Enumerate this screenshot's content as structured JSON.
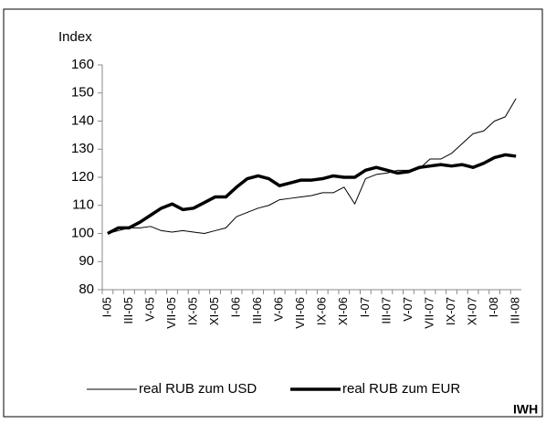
{
  "chart_data": {
    "type": "line",
    "y_label": "Index",
    "annotation": "IWH",
    "categories": [
      "I-05",
      null,
      "III-05",
      null,
      "V-05",
      null,
      "VII-05",
      null,
      "IX-05",
      null,
      "XI-05",
      null,
      "I-06",
      null,
      "III-06",
      null,
      "V-06",
      null,
      "VII-06",
      null,
      "IX-06",
      null,
      "XI-06",
      null,
      "I-07",
      null,
      "III-07",
      null,
      "V-07",
      null,
      "VII-07",
      null,
      "IX-07",
      null,
      "XI-07",
      null,
      "I-08",
      null,
      "III-08"
    ],
    "series": [
      {
        "name": "real RUB zum USD",
        "color": "#000000",
        "width": 1,
        "values": [
          100,
          101,
          102,
          102,
          102.5,
          101,
          100.5,
          101,
          100.5,
          100,
          101,
          102,
          106,
          107.5,
          109,
          110,
          112,
          112.5,
          113,
          113.5,
          114.5,
          114.5,
          116.5,
          110.5,
          119.5,
          121,
          121.5,
          122.5,
          122.5,
          123,
          126.5,
          126.5,
          128.5,
          132,
          135.5,
          136.5,
          140,
          141.5,
          148
        ]
      },
      {
        "name": "real RUB zum EUR",
        "color": "#000000",
        "width": 3.5,
        "values": [
          100,
          102,
          102,
          104,
          106.5,
          109,
          110.5,
          108.5,
          109,
          111,
          113,
          113,
          116.5,
          119.5,
          120.5,
          119.5,
          117,
          118,
          119,
          119,
          119.5,
          120.5,
          120,
          120,
          122.5,
          123.5,
          122.5,
          121.5,
          122,
          123.5,
          124,
          124.5,
          124,
          124.5,
          123.5,
          125,
          127,
          128,
          127.5
        ]
      }
    ],
    "ylim": [
      80,
      160
    ],
    "yticks": [
      80,
      90,
      100,
      110,
      120,
      130,
      140,
      150,
      160
    ],
    "grid": false
  }
}
